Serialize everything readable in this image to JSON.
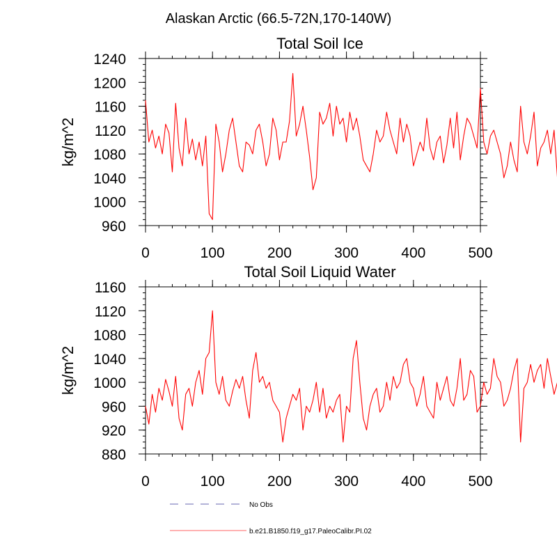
{
  "figure_title": "Alaskan Arctic (66.5-72N,170-140W)",
  "legend": [
    {
      "label": "No Obs",
      "color": "#9999cc",
      "dash": true
    },
    {
      "label": "b.e21.B1850.f19_g17.PaleoCalibr.PI.02",
      "color": "#ff0000",
      "dash": false
    }
  ],
  "chart_data": [
    {
      "type": "line",
      "title": "Total Soil Ice",
      "xlabel": "",
      "ylabel": "kg/m^2",
      "xlim": [
        0,
        500
      ],
      "ylim": [
        960,
        1240
      ],
      "xticks": [
        0,
        100,
        200,
        300,
        400,
        500
      ],
      "yticks": [
        960,
        1000,
        1040,
        1080,
        1120,
        1160,
        1200,
        1240
      ],
      "grid": false,
      "series": [
        {
          "color": "#ff0000",
          "x_start": 0,
          "x_step": 5,
          "values": [
            1170,
            1100,
            1120,
            1090,
            1110,
            1080,
            1130,
            1115,
            1050,
            1165,
            1090,
            1060,
            1140,
            1080,
            1105,
            1070,
            1100,
            1060,
            1110,
            980,
            970,
            1130,
            1100,
            1050,
            1080,
            1120,
            1140,
            1100,
            1060,
            1050,
            1100,
            1095,
            1080,
            1120,
            1130,
            1100,
            1060,
            1080,
            1140,
            1120,
            1070,
            1100,
            1100,
            1135,
            1215,
            1110,
            1130,
            1160,
            1120,
            1075,
            1020,
            1040,
            1150,
            1130,
            1140,
            1165,
            1110,
            1160,
            1130,
            1140,
            1100,
            1150,
            1120,
            1140,
            1110,
            1070,
            1060,
            1050,
            1080,
            1120,
            1100,
            1110,
            1150,
            1120,
            1100,
            1080,
            1140,
            1100,
            1130,
            1110,
            1060,
            1080,
            1100,
            1085,
            1140,
            1090,
            1070,
            1100,
            1110,
            1065,
            1095,
            1140,
            1090,
            1150,
            1070,
            1110,
            1140,
            1130,
            1110,
            1090,
            1190,
            1100,
            1080,
            1110,
            1120,
            1100,
            1080,
            1040,
            1060,
            1100,
            1070,
            1050,
            1160,
            1100,
            1080,
            1110,
            1150,
            1060,
            1090,
            1100,
            1120,
            1080,
            1120,
            1040,
            1080,
            1060,
            1050,
            1030,
            1010,
            1040,
            1060,
            1120,
            1010,
            1090,
            1100,
            1110,
            1080,
            1140,
            1090,
            1120,
            1100,
            1070,
            1150,
            1110,
            1080,
            1130,
            1070,
            1100,
            1120,
            1060,
            1070,
            1110,
            1100,
            1080,
            1090,
            1120,
            1130,
            1090,
            1100,
            1110,
            1080,
            1060,
            1110,
            1040,
            1100,
            1080,
            1140,
            1110,
            1130,
            1150,
            1120,
            1150,
            1140,
            1110,
            1160,
            1040,
            1090,
            1100,
            1120,
            1060,
            1130,
            1080,
            1090,
            1070,
            1130,
            1100,
            1080,
            1000,
            1110,
            1120,
            1010,
            1060
          ]
        }
      ]
    },
    {
      "type": "line",
      "title": "Total Soil Liquid Water",
      "xlabel": "",
      "ylabel": "kg/m^2",
      "xlim": [
        0,
        500
      ],
      "ylim": [
        880,
        1160
      ],
      "xticks": [
        0,
        100,
        200,
        300,
        400,
        500
      ],
      "yticks": [
        880,
        920,
        960,
        1000,
        1040,
        1080,
        1120,
        1160
      ],
      "grid": false,
      "series": [
        {
          "color": "#ff0000",
          "x_start": 0,
          "x_step": 5,
          "values": [
            960,
            930,
            980,
            950,
            990,
            970,
            1005,
            985,
            960,
            1010,
            940,
            920,
            980,
            990,
            960,
            1000,
            1020,
            980,
            1040,
            1050,
            1120,
            1000,
            980,
            1010,
            970,
            960,
            985,
            1005,
            990,
            1010,
            970,
            940,
            1020,
            1050,
            1000,
            1010,
            990,
            1000,
            970,
            960,
            950,
            900,
            940,
            960,
            980,
            970,
            990,
            920,
            960,
            950,
            970,
            1000,
            950,
            990,
            940,
            960,
            950,
            970,
            980,
            900,
            960,
            950,
            1040,
            1070,
            1000,
            940,
            920,
            960,
            980,
            990,
            950,
            960,
            1000,
            970,
            1010,
            990,
            1000,
            1030,
            1040,
            1000,
            990,
            960,
            980,
            1010,
            960,
            950,
            940,
            1000,
            970,
            990,
            1010,
            970,
            960,
            990,
            1040,
            970,
            980,
            1020,
            1010,
            950,
            960,
            1000,
            980,
            990,
            1040,
            1010,
            1000,
            960,
            970,
            990,
            1020,
            1040,
            900,
            990,
            1000,
            1030,
            1000,
            1020,
            1030,
            990,
            1040,
            1010,
            980,
            1000,
            970,
            960,
            1010,
            1030,
            1040,
            980,
            1060,
            1000,
            1020,
            1040,
            1080,
            1040,
            1000,
            980,
            1060,
            990,
            1000,
            960,
            980,
            1010,
            1000,
            940,
            990,
            960,
            1000,
            970,
            1020,
            980,
            990,
            940,
            1010,
            960,
            990,
            970,
            1000,
            950,
            1000,
            940,
            960,
            990,
            980,
            1000,
            1030,
            1050,
            940,
            930,
            960,
            1000,
            1010,
            970,
            950,
            990,
            960,
            1000,
            970,
            960,
            990,
            1060,
            1090,
            1050,
            1000,
            990,
            1060,
            1080
          ]
        }
      ]
    }
  ]
}
